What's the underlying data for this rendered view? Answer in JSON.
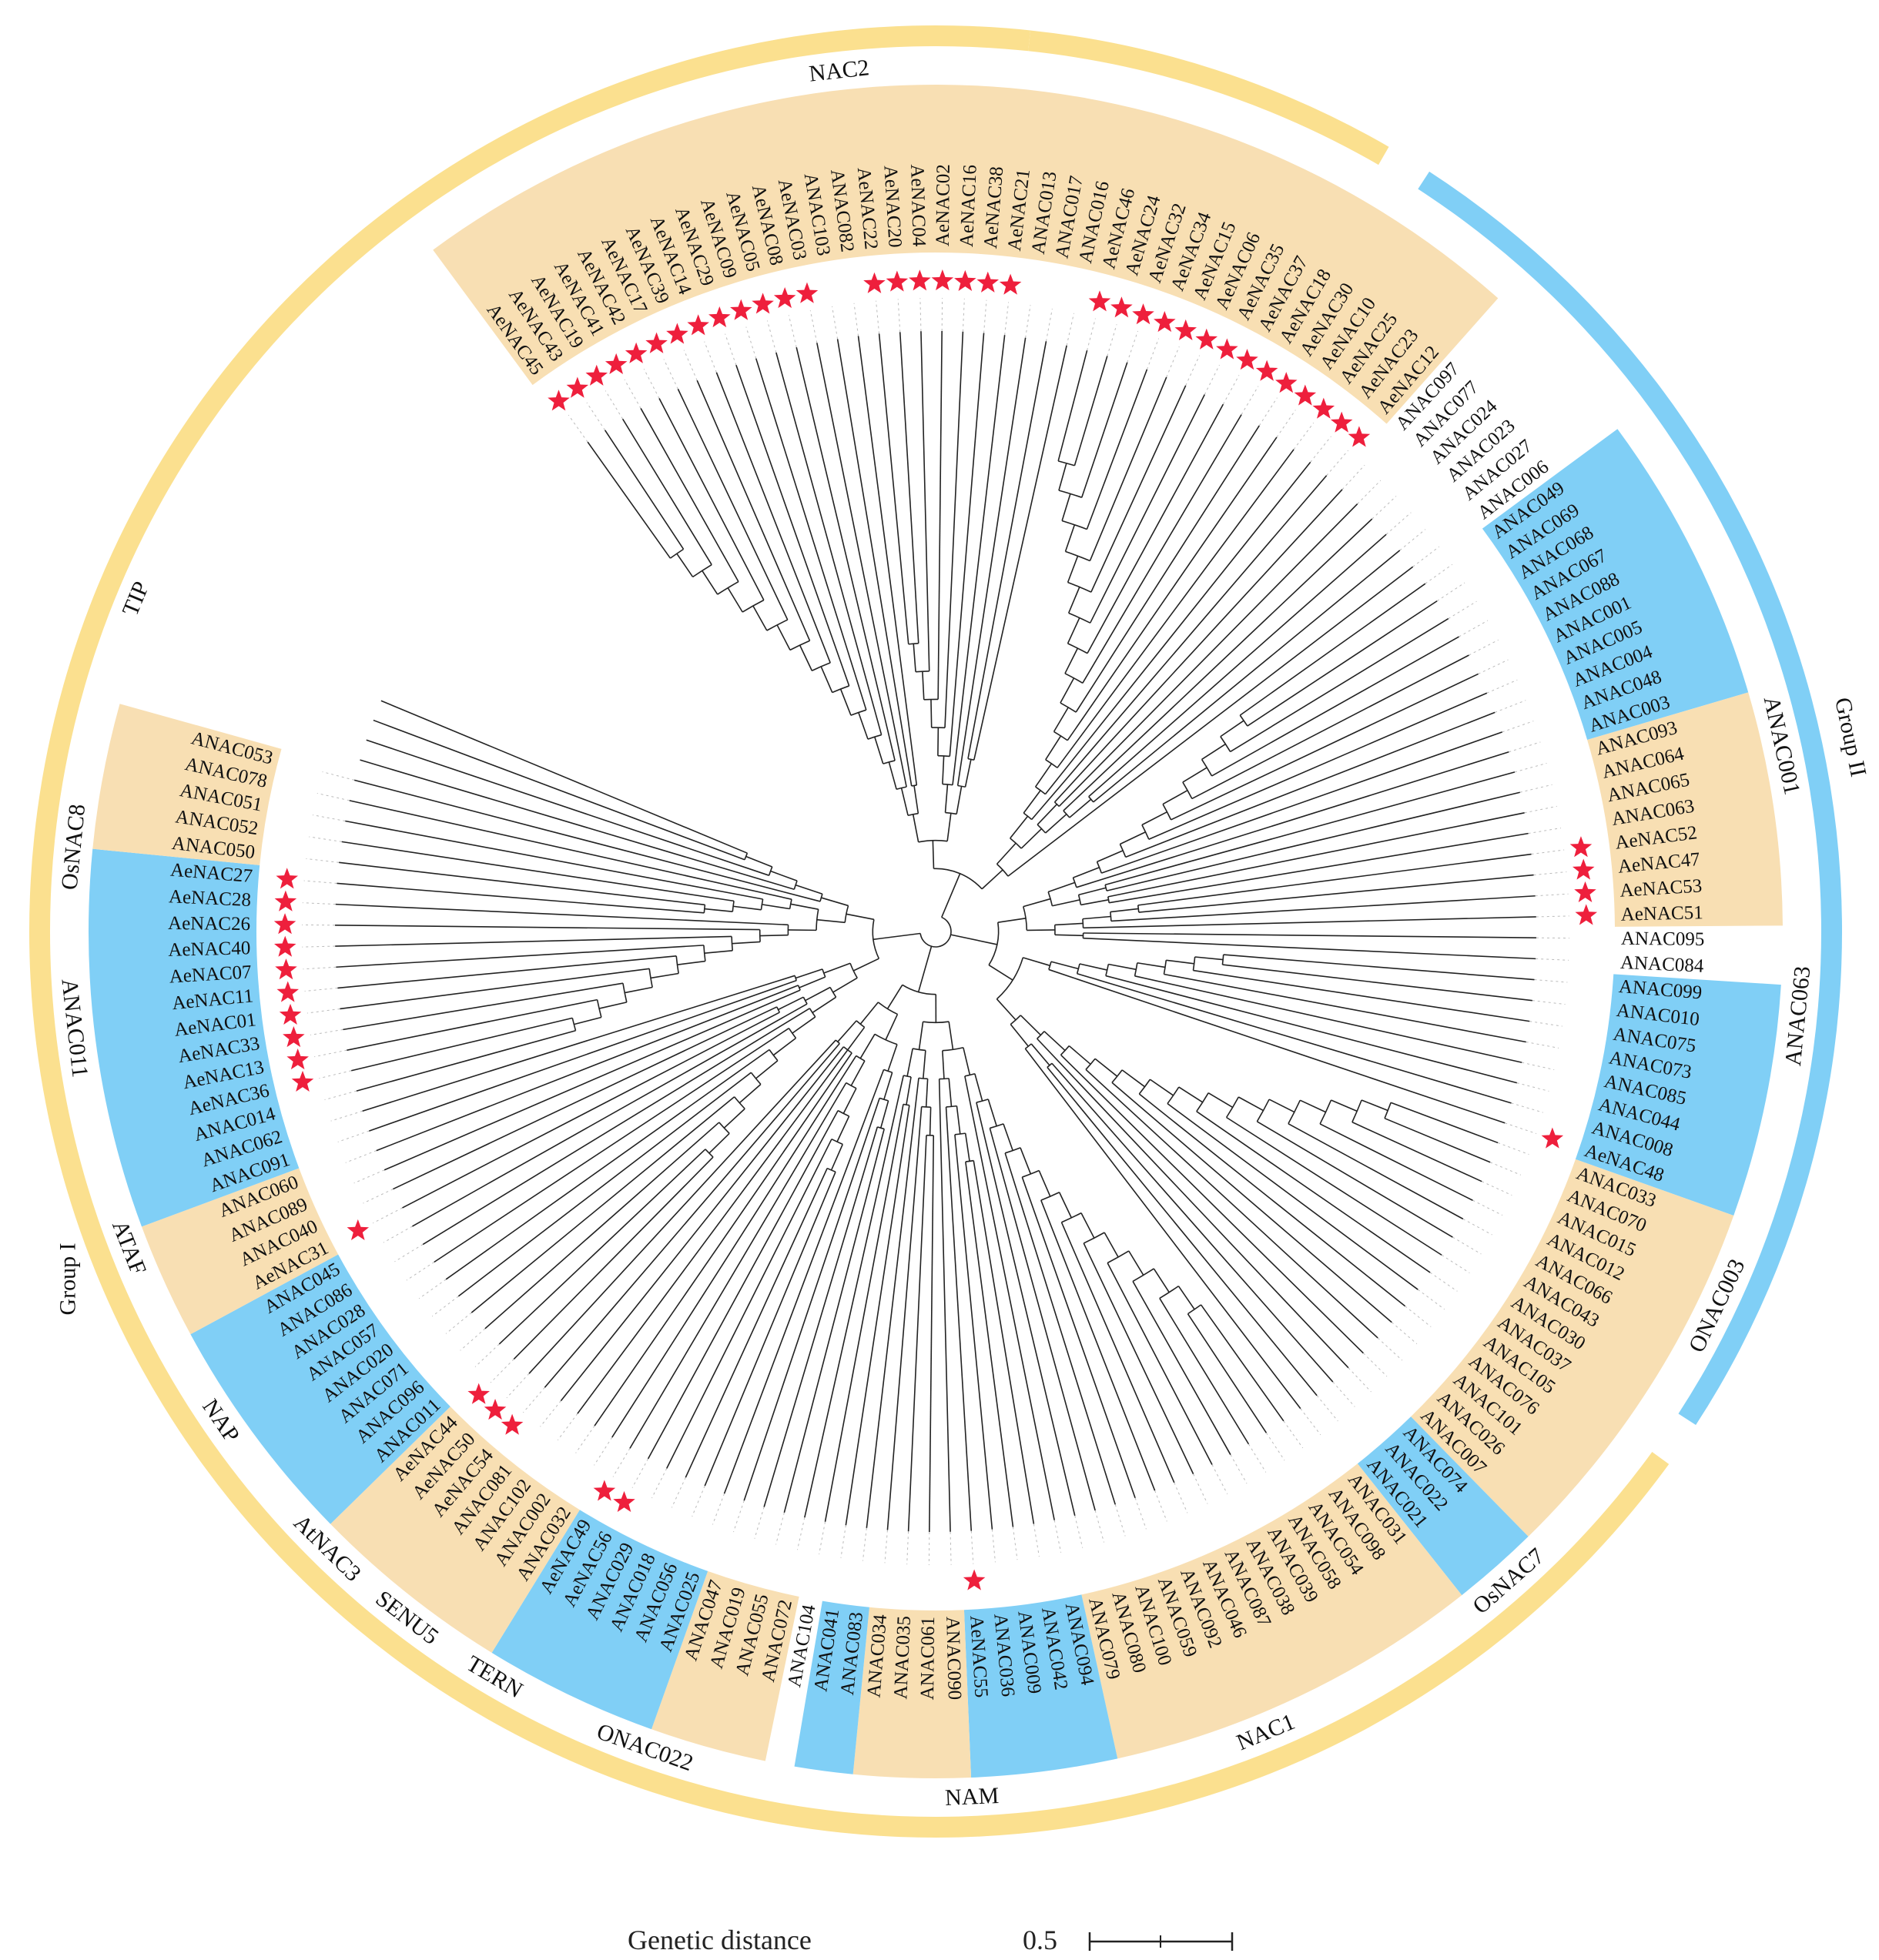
{
  "colors": {
    "yellow": "#fbe08f",
    "blue": "#80cff6",
    "tan": "#f8dfb3",
    "star": "#ee1f3c",
    "line": "#222222",
    "guide": "#bbbbbb"
  },
  "scale": {
    "title": "Genetic distance",
    "value": "0.5"
  },
  "groups": [
    {
      "label": "Group I",
      "color": "yellow"
    },
    {
      "label": "Group II",
      "color": "blue"
    }
  ],
  "clades": [
    {
      "label": "NAC2",
      "from": 0,
      "to": 29
    },
    {
      "label": "ANAC001",
      "from": 52,
      "to": 61
    },
    {
      "label": "ANAC063",
      "from": 62,
      "to": 69
    },
    {
      "label": "ONAC003",
      "from": 72,
      "to": 79
    },
    {
      "label": "OsNAC7",
      "from": 80,
      "to": 94
    },
    {
      "label": "NAC1",
      "from": 95,
      "to": 98
    },
    {
      "label": "NAM",
      "from": 99,
      "to": 114
    },
    {
      "label": "ONAC022",
      "from": 115,
      "to": 120
    },
    {
      "label": "TERN",
      "from": 121,
      "to": 125
    },
    {
      "label": "SENU5",
      "from": 126,
      "to": 127
    },
    {
      "label": "AtNAC3",
      "from": 128,
      "to": 132
    },
    {
      "label": "NAP",
      "from": 133,
      "to": 138
    },
    {
      "label": "ATAF",
      "from": 139,
      "to": 145
    },
    {
      "label": "ANAC011",
      "from": 146,
      "to": 153
    },
    {
      "label": "OsNAC8",
      "from": 154,
      "to": 157
    },
    {
      "label": "TIP",
      "from": 158,
      "to": 170
    }
  ],
  "leaves": [
    {
      "name": "AeNAC45",
      "bg": "tan",
      "star": true
    },
    {
      "name": "AeNAC43",
      "bg": "tan",
      "star": true
    },
    {
      "name": "AeNAC19",
      "bg": "tan",
      "star": true
    },
    {
      "name": "AeNAC41",
      "bg": "tan",
      "star": true
    },
    {
      "name": "AeNAC42",
      "bg": "tan",
      "star": true
    },
    {
      "name": "AeNAC17",
      "bg": "tan",
      "star": true
    },
    {
      "name": "AeNAC39",
      "bg": "tan",
      "star": true
    },
    {
      "name": "AeNAC14",
      "bg": "tan",
      "star": true
    },
    {
      "name": "AeNAC29",
      "bg": "tan",
      "star": true
    },
    {
      "name": "AeNAC09",
      "bg": "tan",
      "star": true
    },
    {
      "name": "AeNAC05",
      "bg": "tan",
      "star": true
    },
    {
      "name": "AeNAC08",
      "bg": "tan",
      "star": true
    },
    {
      "name": "AeNAC03",
      "bg": "tan",
      "star": true
    },
    {
      "name": "ANAC103",
      "bg": "tan",
      "star": false
    },
    {
      "name": "ANAC082",
      "bg": "tan",
      "star": false
    },
    {
      "name": "AeNAC22",
      "bg": "tan",
      "star": true
    },
    {
      "name": "AeNAC20",
      "bg": "tan",
      "star": true
    },
    {
      "name": "AeNAC04",
      "bg": "tan",
      "star": true
    },
    {
      "name": "AeNAC02",
      "bg": "tan",
      "star": true
    },
    {
      "name": "AeNAC16",
      "bg": "tan",
      "star": true
    },
    {
      "name": "AeNAC38",
      "bg": "tan",
      "star": true
    },
    {
      "name": "AeNAC21",
      "bg": "tan",
      "star": true
    },
    {
      "name": "ANAC013",
      "bg": "tan",
      "star": false
    },
    {
      "name": "ANAC017",
      "bg": "tan",
      "star": false
    },
    {
      "name": "ANAC016",
      "bg": "tan",
      "star": false
    },
    {
      "name": "AeNAC46",
      "bg": "tan",
      "star": true
    },
    {
      "name": "AeNAC24",
      "bg": "tan",
      "star": true
    },
    {
      "name": "AeNAC32",
      "bg": "tan",
      "star": true
    },
    {
      "name": "AeNAC34",
      "bg": "tan",
      "star": true
    },
    {
      "name": "AeNAC15",
      "bg": "tan",
      "star": true
    },
    {
      "name": "AeNAC06",
      "bg": "tan",
      "star": true
    },
    {
      "name": "AeNAC35",
      "bg": "tan",
      "star": true
    },
    {
      "name": "AeNAC37",
      "bg": "tan",
      "star": true
    },
    {
      "name": "AeNAC18",
      "bg": "tan",
      "star": true
    },
    {
      "name": "AeNAC30",
      "bg": "tan",
      "star": true
    },
    {
      "name": "AeNAC10",
      "bg": "tan",
      "star": true
    },
    {
      "name": "AeNAC25",
      "bg": "tan",
      "star": true
    },
    {
      "name": "AeNAC23",
      "bg": "tan",
      "star": true
    },
    {
      "name": "AeNAC12",
      "bg": "tan",
      "star": true
    },
    {
      "name": "ANAC097",
      "bg": "none",
      "star": false
    },
    {
      "name": "ANAC077",
      "bg": "none",
      "star": false
    },
    {
      "name": "ANAC024",
      "bg": "none",
      "star": false
    },
    {
      "name": "ANAC023",
      "bg": "none",
      "star": false
    },
    {
      "name": "ANAC027",
      "bg": "none",
      "star": false
    },
    {
      "name": "ANAC006",
      "bg": "none",
      "star": false
    },
    {
      "name": "ANAC049",
      "bg": "blue",
      "star": false
    },
    {
      "name": "ANAC069",
      "bg": "blue",
      "star": false
    },
    {
      "name": "ANAC068",
      "bg": "blue",
      "star": false
    },
    {
      "name": "ANAC067",
      "bg": "blue",
      "star": false
    },
    {
      "name": "ANAC088",
      "bg": "blue",
      "star": false
    },
    {
      "name": "ANAC001",
      "bg": "blue",
      "star": false
    },
    {
      "name": "ANAC005",
      "bg": "blue",
      "star": false
    },
    {
      "name": "ANAC004",
      "bg": "blue",
      "star": false
    },
    {
      "name": "ANAC048",
      "bg": "blue",
      "star": false
    },
    {
      "name": "ANAC003",
      "bg": "blue",
      "star": false
    },
    {
      "name": "ANAC093",
      "bg": "tan",
      "star": false
    },
    {
      "name": "ANAC064",
      "bg": "tan",
      "star": false
    },
    {
      "name": "ANAC065",
      "bg": "tan",
      "star": false
    },
    {
      "name": "ANAC063",
      "bg": "tan",
      "star": false
    },
    {
      "name": "AeNAC52",
      "bg": "tan",
      "star": true
    },
    {
      "name": "AeNAC47",
      "bg": "tan",
      "star": true
    },
    {
      "name": "AeNAC53",
      "bg": "tan",
      "star": true
    },
    {
      "name": "AeNAC51",
      "bg": "tan",
      "star": true
    },
    {
      "name": "ANAC095",
      "bg": "none",
      "star": false
    },
    {
      "name": "ANAC084",
      "bg": "none",
      "star": false
    },
    {
      "name": "ANAC099",
      "bg": "blue",
      "star": false
    },
    {
      "name": "ANAC010",
      "bg": "blue",
      "star": false
    },
    {
      "name": "ANAC075",
      "bg": "blue",
      "star": false
    },
    {
      "name": "ANAC073",
      "bg": "blue",
      "star": false
    },
    {
      "name": "ANAC085",
      "bg": "blue",
      "star": false
    },
    {
      "name": "ANAC044",
      "bg": "blue",
      "star": false
    },
    {
      "name": "ANAC008",
      "bg": "blue",
      "star": false
    },
    {
      "name": "AeNAC48",
      "bg": "blue",
      "star": true
    },
    {
      "name": "ANAC033",
      "bg": "tan",
      "star": false
    },
    {
      "name": "ANAC070",
      "bg": "tan",
      "star": false
    },
    {
      "name": "ANAC015",
      "bg": "tan",
      "star": false
    },
    {
      "name": "ANAC012",
      "bg": "tan",
      "star": false
    },
    {
      "name": "ANAC066",
      "bg": "tan",
      "star": false
    },
    {
      "name": "ANAC043",
      "bg": "tan",
      "star": false
    },
    {
      "name": "ANAC030",
      "bg": "tan",
      "star": false
    },
    {
      "name": "ANAC037",
      "bg": "tan",
      "star": false
    },
    {
      "name": "ANAC105",
      "bg": "tan",
      "star": false
    },
    {
      "name": "ANAC076",
      "bg": "tan",
      "star": false
    },
    {
      "name": "ANAC101",
      "bg": "tan",
      "star": false
    },
    {
      "name": "ANAC026",
      "bg": "tan",
      "star": false
    },
    {
      "name": "ANAC007",
      "bg": "tan",
      "star": false
    },
    {
      "name": "ANAC074",
      "bg": "blue",
      "star": false
    },
    {
      "name": "ANAC022",
      "bg": "blue",
      "star": false
    },
    {
      "name": "ANAC021",
      "bg": "blue",
      "star": false
    },
    {
      "name": "ANAC031",
      "bg": "tan",
      "star": false
    },
    {
      "name": "ANAC098",
      "bg": "tan",
      "star": false
    },
    {
      "name": "ANAC054",
      "bg": "tan",
      "star": false
    },
    {
      "name": "ANAC058",
      "bg": "tan",
      "star": false
    },
    {
      "name": "ANAC039",
      "bg": "tan",
      "star": false
    },
    {
      "name": "ANAC038",
      "bg": "tan",
      "star": false
    },
    {
      "name": "ANAC087",
      "bg": "tan",
      "star": false
    },
    {
      "name": "ANAC046",
      "bg": "tan",
      "star": false
    },
    {
      "name": "ANAC092",
      "bg": "tan",
      "star": false
    },
    {
      "name": "ANAC059",
      "bg": "tan",
      "star": false
    },
    {
      "name": "ANAC100",
      "bg": "tan",
      "star": false
    },
    {
      "name": "ANAC080",
      "bg": "tan",
      "star": false
    },
    {
      "name": "ANAC079",
      "bg": "tan",
      "star": false
    },
    {
      "name": "ANAC094",
      "bg": "blue",
      "star": false
    },
    {
      "name": "ANAC042",
      "bg": "blue",
      "star": false
    },
    {
      "name": "ANAC009",
      "bg": "blue",
      "star": false
    },
    {
      "name": "ANAC036",
      "bg": "blue",
      "star": false
    },
    {
      "name": "AeNAC55",
      "bg": "blue",
      "star": true
    },
    {
      "name": "ANAC090",
      "bg": "tan",
      "star": false
    },
    {
      "name": "ANAC061",
      "bg": "tan",
      "star": false
    },
    {
      "name": "ANAC035",
      "bg": "tan",
      "star": false
    },
    {
      "name": "ANAC034",
      "bg": "tan",
      "star": false
    },
    {
      "name": "ANAC083",
      "bg": "blue",
      "star": false
    },
    {
      "name": "ANAC041",
      "bg": "blue",
      "star": false
    },
    {
      "name": "ANAC104",
      "bg": "none",
      "star": false
    },
    {
      "name": "ANAC072",
      "bg": "tan",
      "star": false
    },
    {
      "name": "ANAC055",
      "bg": "tan",
      "star": false
    },
    {
      "name": "ANAC019",
      "bg": "tan",
      "star": false
    },
    {
      "name": "ANAC047",
      "bg": "tan",
      "star": false
    },
    {
      "name": "ANAC025",
      "bg": "blue",
      "star": false
    },
    {
      "name": "ANAC056",
      "bg": "blue",
      "star": false
    },
    {
      "name": "ANAC018",
      "bg": "blue",
      "star": false
    },
    {
      "name": "ANAC029",
      "bg": "blue",
      "star": false
    },
    {
      "name": "AeNAC56",
      "bg": "blue",
      "star": true
    },
    {
      "name": "AeNAC49",
      "bg": "blue",
      "star": true
    },
    {
      "name": "ANAC032",
      "bg": "tan",
      "star": false
    },
    {
      "name": "ANAC002",
      "bg": "tan",
      "star": false
    },
    {
      "name": "ANAC102",
      "bg": "tan",
      "star": false
    },
    {
      "name": "ANAC081",
      "bg": "tan",
      "star": false
    },
    {
      "name": "AeNAC54",
      "bg": "tan",
      "star": true
    },
    {
      "name": "AeNAC50",
      "bg": "tan",
      "star": true
    },
    {
      "name": "AeNAC44",
      "bg": "tan",
      "star": true
    },
    {
      "name": "ANAC011",
      "bg": "blue",
      "star": false
    },
    {
      "name": "ANAC096",
      "bg": "blue",
      "star": false
    },
    {
      "name": "ANAC071",
      "bg": "blue",
      "star": false
    },
    {
      "name": "ANAC020",
      "bg": "blue",
      "star": false
    },
    {
      "name": "ANAC057",
      "bg": "blue",
      "star": false
    },
    {
      "name": "ANAC028",
      "bg": "blue",
      "star": false
    },
    {
      "name": "ANAC086",
      "bg": "blue",
      "star": false
    },
    {
      "name": "ANAC045",
      "bg": "blue",
      "star": false
    },
    {
      "name": "AeNAC31",
      "bg": "tan",
      "star": true
    },
    {
      "name": "ANAC040",
      "bg": "tan",
      "star": false
    },
    {
      "name": "ANAC089",
      "bg": "tan",
      "star": false
    },
    {
      "name": "ANAC060",
      "bg": "tan",
      "star": false
    },
    {
      "name": "ANAC091",
      "bg": "blue",
      "star": false
    },
    {
      "name": "ANAC062",
      "bg": "blue",
      "star": false
    },
    {
      "name": "ANAC014",
      "bg": "blue",
      "star": false
    },
    {
      "name": "AeNAC36",
      "bg": "blue",
      "star": true
    },
    {
      "name": "AeNAC13",
      "bg": "blue",
      "star": true
    },
    {
      "name": "AeNAC33",
      "bg": "blue",
      "star": true
    },
    {
      "name": "AeNAC01",
      "bg": "blue",
      "star": true
    },
    {
      "name": "AeNAC11",
      "bg": "blue",
      "star": true
    },
    {
      "name": "AeNAC07",
      "bg": "blue",
      "star": true
    },
    {
      "name": "AeNAC40",
      "bg": "blue",
      "star": true
    },
    {
      "name": "AeNAC26",
      "bg": "blue",
      "star": true
    },
    {
      "name": "AeNAC28",
      "bg": "blue",
      "star": true
    },
    {
      "name": "AeNAC27",
      "bg": "blue",
      "star": true
    },
    {
      "name": "ANAC050",
      "bg": "tan",
      "star": false
    },
    {
      "name": "ANAC052",
      "bg": "tan",
      "star": false
    },
    {
      "name": "ANAC051",
      "bg": "tan",
      "star": false
    },
    {
      "name": "ANAC078",
      "bg": "tan",
      "star": false
    },
    {
      "name": "ANAC053",
      "bg": "tan",
      "star": false
    }
  ]
}
